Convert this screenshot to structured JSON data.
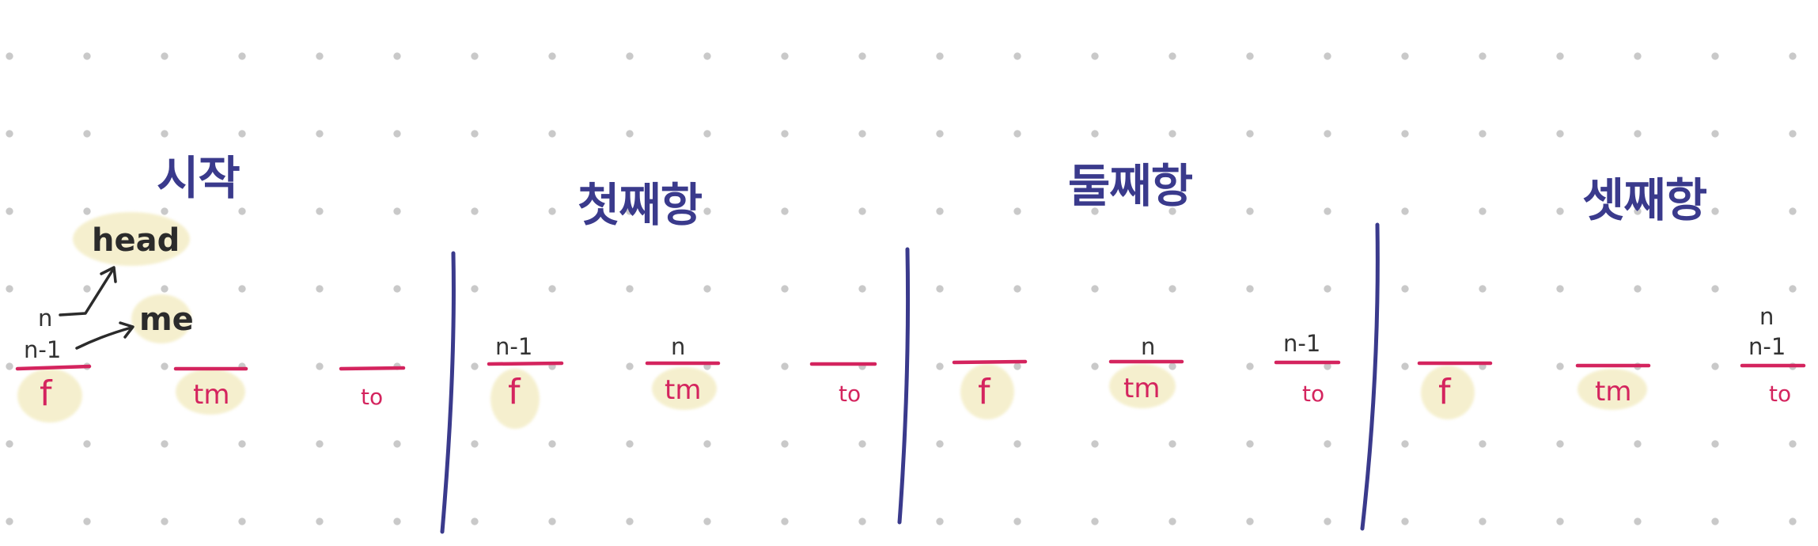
{
  "panels": [
    {
      "title": "시작",
      "pegs": [
        "f",
        "tm",
        "to"
      ],
      "pointers": {
        "f": [
          "n",
          "n-1"
        ],
        "tm": [],
        "to": []
      },
      "annotations": [
        "head",
        "me"
      ]
    },
    {
      "title": "첫째항",
      "pegs": [
        "f",
        "tm",
        "to"
      ],
      "pointers": {
        "f": [
          "n-1"
        ],
        "tm": [
          "n"
        ],
        "to": []
      }
    },
    {
      "title": "둘째항",
      "pegs": [
        "f",
        "tm",
        "to"
      ],
      "pointers": {
        "f": [],
        "tm": [
          "n"
        ],
        "to": [
          "n-1"
        ]
      }
    },
    {
      "title": "셋째항",
      "pegs": [
        "f",
        "tm",
        "to"
      ],
      "pointers": {
        "f": [],
        "tm": [],
        "to": [
          "n",
          "n-1"
        ]
      }
    }
  ],
  "colors": {
    "title": "#3a3a8c",
    "peg": "#d4245e",
    "divider": "#3a3a8c",
    "highlight": "#f5efcc",
    "ink": "#2b2b2b"
  }
}
